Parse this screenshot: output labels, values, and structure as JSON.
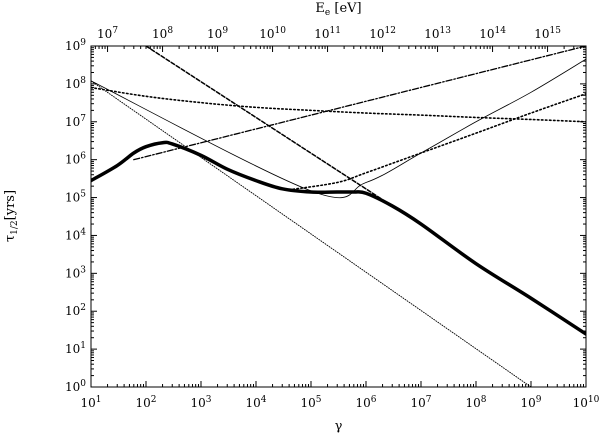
{
  "chart_data": {
    "type": "line",
    "title": "",
    "xlabel": "γ",
    "ylabel": "τ1/2[yrs]",
    "x2label": "Ee [eV]",
    "xscale": "log",
    "yscale": "log",
    "xlim": [
      10,
      10000000000
    ],
    "ylim": [
      1,
      1000000000
    ],
    "x2lim": [
      5000000,
      5000000000000000
    ],
    "grid": false,
    "legend": "none",
    "x_ticks": [
      {
        "value": 10,
        "base": "10",
        "exp": "1"
      },
      {
        "value": 100,
        "base": "10",
        "exp": "2"
      },
      {
        "value": 1000,
        "base": "10",
        "exp": "3"
      },
      {
        "value": 10000,
        "base": "10",
        "exp": "4"
      },
      {
        "value": 100000,
        "base": "10",
        "exp": "5"
      },
      {
        "value": 1000000,
        "base": "10",
        "exp": "6"
      },
      {
        "value": 10000000,
        "base": "10",
        "exp": "7"
      },
      {
        "value": 100000000,
        "base": "10",
        "exp": "8"
      },
      {
        "value": 1000000000,
        "base": "10",
        "exp": "9"
      },
      {
        "value": 10000000000,
        "base": "10",
        "exp": "10"
      }
    ],
    "y_ticks": [
      {
        "value": 1,
        "base": "10",
        "exp": "0"
      },
      {
        "value": 10,
        "base": "10",
        "exp": "1"
      },
      {
        "value": 100,
        "base": "10",
        "exp": "2"
      },
      {
        "value": 1000,
        "base": "10",
        "exp": "3"
      },
      {
        "value": 10000,
        "base": "10",
        "exp": "4"
      },
      {
        "value": 100000,
        "base": "10",
        "exp": "5"
      },
      {
        "value": 1000000,
        "base": "10",
        "exp": "6"
      },
      {
        "value": 10000000,
        "base": "10",
        "exp": "7"
      },
      {
        "value": 100000000,
        "base": "10",
        "exp": "8"
      },
      {
        "value": 1000000000,
        "base": "10",
        "exp": "9"
      }
    ],
    "x2_ticks": [
      {
        "value": 10000000,
        "base": "10",
        "exp": "7"
      },
      {
        "value": 100000000,
        "base": "10",
        "exp": "8"
      },
      {
        "value": 1000000000,
        "base": "10",
        "exp": "9"
      },
      {
        "value": 10000000000,
        "base": "10",
        "exp": "10"
      },
      {
        "value": 100000000000,
        "base": "10",
        "exp": "11"
      },
      {
        "value": 1000000000000,
        "base": "10",
        "exp": "12"
      },
      {
        "value": 10000000000000,
        "base": "10",
        "exp": "13"
      },
      {
        "value": 100000000000000,
        "base": "10",
        "exp": "14"
      },
      {
        "value": 1000000000000000,
        "base": "10",
        "exp": "15"
      }
    ],
    "series": [
      {
        "style": "thick-solid",
        "x": [
          10,
          30,
          60,
          100,
          200,
          300,
          1000,
          3000,
          10000,
          30000,
          100000,
          300000,
          600000,
          1000000,
          3000000,
          10000000,
          100000000,
          1000000000,
          10000000000
        ],
        "y": [
          280000,
          700000,
          1500000,
          2200000,
          2800000,
          2600000,
          1300000,
          560000,
          280000,
          170000,
          140000,
          140000,
          140000,
          130000,
          60000,
          20000,
          1800,
          220,
          25
        ]
      },
      {
        "style": "thin-solid",
        "x": [
          10,
          100000,
          1000000,
          10000000,
          100000000,
          1000000000,
          10000000000
        ],
        "y": [
          120000000,
          150000,
          250000,
          1500000,
          10000000,
          60000000,
          450000000
        ]
      },
      {
        "style": "dashed",
        "x": [
          100,
          3000000
        ],
        "y": [
          1000000000,
          60000
        ]
      },
      {
        "style": "dash-dot",
        "x": [
          60,
          10000000000
        ],
        "y": [
          1000000,
          1000000000
        ]
      },
      {
        "style": "dotted-medium",
        "x": [
          10,
          100,
          1000,
          10000,
          100000,
          1000000,
          10000000,
          100000000,
          1000000000,
          10000000000
        ],
        "y": [
          80000000,
          47000000,
          32000000,
          24000000,
          20000000,
          17000000,
          15000000,
          13000000,
          11500000,
          10000000
        ]
      },
      {
        "style": "dotted-medium",
        "x": [
          40000,
          300000,
          1000000,
          10000000,
          100000000,
          1000000000,
          10000000000
        ],
        "y": [
          160000,
          250000,
          450000,
          1500000,
          5000000,
          17000000,
          55000000
        ]
      },
      {
        "style": "dotted-fine",
        "x": [
          10,
          1000000000
        ],
        "y": [
          120000000,
          1
        ]
      }
    ]
  }
}
